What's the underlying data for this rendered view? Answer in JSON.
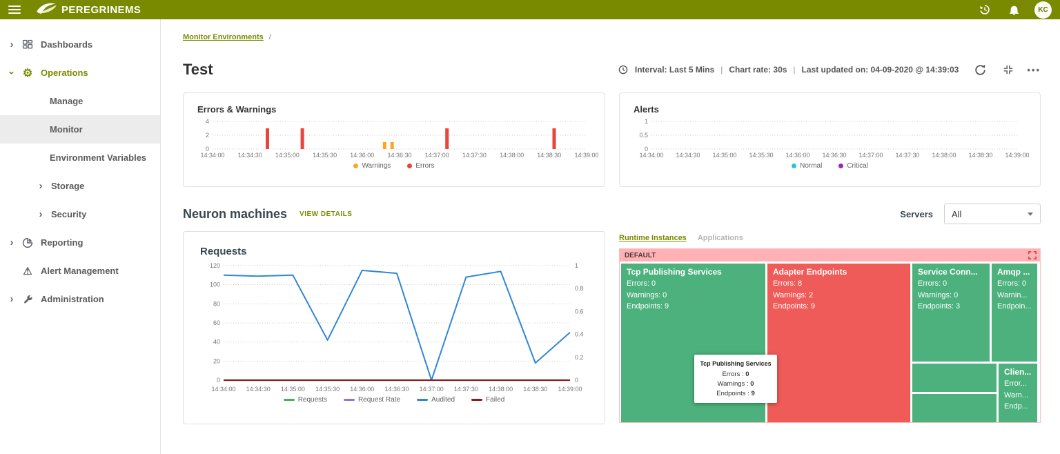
{
  "colors": {
    "topbar": "#798a00",
    "accent": "#7a8b00",
    "treemap_green": "#4cb17c",
    "treemap_red": "#ef5b58",
    "treemap_header_pink": "#ffb1b5"
  },
  "topbar": {
    "brand": "PEREGRINEMS",
    "avatar_initials": "KC"
  },
  "sidebar": {
    "items": [
      {
        "label": "Dashboards",
        "icon": "dashboards-grid-icon"
      },
      {
        "label": "Operations",
        "icon": "gear-icon",
        "expanded": true
      },
      {
        "label": "Manage"
      },
      {
        "label": "Monitor",
        "selected": true
      },
      {
        "label": "Environment Variables"
      },
      {
        "label": "Storage"
      },
      {
        "label": "Security"
      },
      {
        "label": "Reporting",
        "icon": "pie-chart-icon"
      },
      {
        "label": "Alert Management",
        "icon": "warning-triangle-icon"
      },
      {
        "label": "Administration",
        "icon": "wrench-icon"
      }
    ]
  },
  "breadcrumb": {
    "link_label": "Monitor Environments",
    "separator": "/"
  },
  "page": {
    "title": "Test",
    "interval": "Interval: Last 5 Mins",
    "chart_rate": "Chart rate: 30s",
    "last_updated": "Last updated on: 04-09-2020 @ 14:39:03",
    "pipe": "|",
    "more_dots": "•••"
  },
  "section": {
    "title": "Neuron machines",
    "view_details": "VIEW DETAILS",
    "servers_label": "Servers",
    "servers_value": "All"
  },
  "tabs": [
    {
      "label": "Runtime Instances",
      "active": true
    },
    {
      "label": "Applications",
      "active": false
    }
  ],
  "treemap": {
    "group": "DEFAULT",
    "cells": [
      {
        "title": "Tcp Publishing Services",
        "lines": [
          "Errors: 0",
          "Warnings: 0",
          "Endpoints: 9"
        ],
        "color": "#4cb17c"
      },
      {
        "title": "Adapter Endpoints",
        "lines": [
          "Errors: 8",
          "Warnings: 2",
          "Endpoints: 9"
        ],
        "color": "#ef5b58"
      },
      {
        "title": "Service Conn...",
        "lines": [
          "Errors: 0",
          "Warnings: 0",
          "Endpoints: 3"
        ],
        "color": "#4cb17c"
      },
      {
        "title": "Amqp ...",
        "lines": [
          "Errors: 0",
          "Warnin...",
          "Endpoin..."
        ],
        "color": "#4cb17c"
      },
      {
        "title": "",
        "lines": [
          "",
          "",
          ""
        ],
        "color": "#4cb17c"
      },
      {
        "title": "",
        "lines": [
          "",
          "",
          ""
        ],
        "color": "#4cb17c"
      },
      {
        "title": "Clien...",
        "lines": [
          "Error...",
          "Warn...",
          "Endp..."
        ],
        "color": "#4cb17c"
      }
    ],
    "tooltip": {
      "title": "Tcp Publishing Services",
      "rows": [
        {
          "label": "Errors :",
          "value": "0"
        },
        {
          "label": "Warnings :",
          "value": "0"
        },
        {
          "label": "Endpoints :",
          "value": "9"
        }
      ]
    }
  },
  "chart_data": [
    {
      "id": "errors-warnings",
      "type": "bar",
      "title": "Errors & Warnings",
      "x_ticks": [
        "14:34:00",
        "14:34:30",
        "14:35:00",
        "14:35:30",
        "14:36:00",
        "14:36:30",
        "14:37:00",
        "14:37:30",
        "14:38:00",
        "14:38:30",
        "14:39:00"
      ],
      "y_ticks": [
        0,
        2,
        4
      ],
      "ylim": [
        0,
        4
      ],
      "legend_position": "bottom",
      "grid": "dotted",
      "series": [
        {
          "name": "Warnings",
          "color": "#f9a825",
          "points": [
            {
              "x": "14:36:18",
              "y": 1
            },
            {
              "x": "14:36:24",
              "y": 1
            }
          ]
        },
        {
          "name": "Errors",
          "color": "#e8453c",
          "points": [
            {
              "x": "14:34:44",
              "y": 3
            },
            {
              "x": "14:35:12",
              "y": 3
            },
            {
              "x": "14:37:08",
              "y": 3
            },
            {
              "x": "14:38:34",
              "y": 3
            }
          ]
        }
      ]
    },
    {
      "id": "alerts",
      "type": "bar",
      "title": "Alerts",
      "x_ticks": [
        "14:34:00",
        "14:34:30",
        "14:35:00",
        "14:35:30",
        "14:36:00",
        "14:36:30",
        "14:37:00",
        "14:37:30",
        "14:38:00",
        "14:38:30",
        "14:39:00"
      ],
      "y_ticks": [
        0,
        0.5,
        1
      ],
      "ylim": [
        0,
        1
      ],
      "legend_position": "bottom",
      "grid": "dotted",
      "series": [
        {
          "name": "Normal",
          "color": "#26c6da",
          "points": []
        },
        {
          "name": "Critical",
          "color": "#9c27b0",
          "points": []
        }
      ]
    },
    {
      "id": "requests",
      "type": "line",
      "title": "Requests",
      "x_ticks": [
        "14:34:00",
        "14:34:30",
        "14:35:00",
        "14:35:30",
        "14:36:00",
        "14:36:30",
        "14:37:00",
        "14:37:30",
        "14:38:00",
        "14:38:30",
        "14:39:00"
      ],
      "y_ticks_left": [
        0,
        20,
        40,
        60,
        80,
        100,
        120
      ],
      "y_ticks_right": [
        0,
        0.2,
        0.4,
        0.6,
        0.8,
        1
      ],
      "ylim": [
        0,
        120
      ],
      "legend_position": "bottom",
      "grid": "dotted",
      "series": [
        {
          "name": "Requests",
          "color": "#4caf50",
          "stroke": 1.6,
          "values": [
            0,
            0,
            0,
            0,
            0,
            0,
            0,
            0,
            0,
            0,
            0
          ]
        },
        {
          "name": "Request Rate",
          "color": "#9575cd",
          "stroke": 1.6,
          "values": [
            0,
            0,
            0,
            0,
            0,
            0,
            0,
            0,
            0,
            0,
            0
          ]
        },
        {
          "name": "Audited",
          "color": "#2f86d6",
          "stroke": 2,
          "values": [
            110,
            109,
            110,
            42,
            115,
            112,
            0,
            108,
            114,
            18,
            50
          ]
        },
        {
          "name": "Failed",
          "color": "#8b1c1c",
          "stroke": 2.2,
          "values": [
            0,
            0,
            0,
            0,
            0,
            0,
            0,
            0,
            0,
            0,
            0
          ]
        }
      ]
    }
  ]
}
